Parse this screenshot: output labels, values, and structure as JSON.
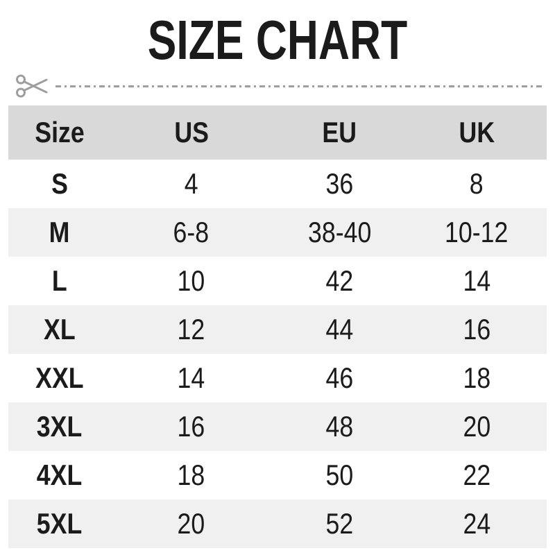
{
  "title": "SIZE CHART",
  "divider": {
    "icon": "scissors",
    "style": "dash-dot"
  },
  "chart_data": {
    "type": "table",
    "title": "SIZE CHART",
    "columns": [
      "Size",
      "US",
      "EU",
      "UK"
    ],
    "rows": [
      [
        "S",
        "4",
        "36",
        "8"
      ],
      [
        "M",
        "6-8",
        "38-40",
        "10-12"
      ],
      [
        "L",
        "10",
        "42",
        "14"
      ],
      [
        "XL",
        "12",
        "44",
        "16"
      ],
      [
        "XXL",
        "14",
        "46",
        "18"
      ],
      [
        "3XL",
        "16",
        "48",
        "20"
      ],
      [
        "4XL",
        "18",
        "50",
        "22"
      ],
      [
        "5XL",
        "20",
        "52",
        "24"
      ]
    ],
    "layout_hints": {
      "header_shaded": true,
      "zebra_rows": "even rows shaded",
      "all_text_centered": true
    }
  },
  "colors": {
    "header_bg": "#d9d9d9",
    "alt_row_bg": "#f0f0f0",
    "text": "#1b1b1b",
    "divider": "#9e9e9e",
    "page_bg": "#ffffff"
  }
}
